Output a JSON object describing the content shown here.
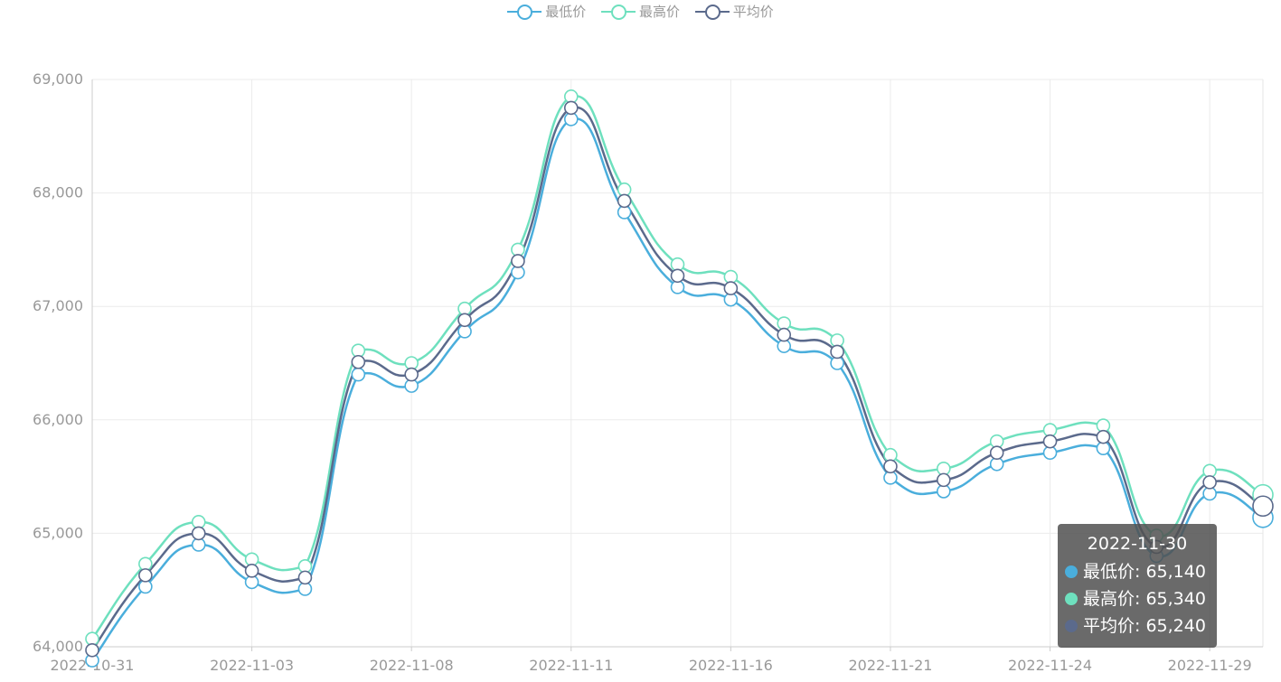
{
  "legend": {
    "items": [
      {
        "label": "最低价",
        "color": "#4aaedc"
      },
      {
        "label": "最高价",
        "color": "#6ee0be"
      },
      {
        "label": "平均价",
        "color": "#5b6a8c"
      }
    ]
  },
  "tooltip": {
    "title": "2022-11-30",
    "rows": [
      {
        "label": "最低价: 65,140",
        "color": "#4aaedc"
      },
      {
        "label": "最高价: 65,340",
        "color": "#6ee0be"
      },
      {
        "label": "平均价: 65,240",
        "color": "#5b6a8c"
      }
    ]
  },
  "chart_data": {
    "type": "line",
    "smooth": true,
    "x": [
      "2022-10-31",
      "2022-11-01",
      "2022-11-02",
      "2022-11-03",
      "2022-11-04",
      "2022-11-07",
      "2022-11-08",
      "2022-11-09",
      "2022-11-10",
      "2022-11-11",
      "2022-11-14",
      "2022-11-15",
      "2022-11-16",
      "2022-11-17",
      "2022-11-18",
      "2022-11-21",
      "2022-11-22",
      "2022-11-23",
      "2022-11-24",
      "2022-11-25",
      "2022-11-28",
      "2022-11-29",
      "2022-11-30"
    ],
    "x_tick_labels": [
      "2022-10-31",
      "2022-11-03",
      "2022-11-08",
      "2022-11-11",
      "2022-11-16",
      "2022-11-21",
      "2022-11-24",
      "2022-11-29"
    ],
    "x_tick_indices": [
      0,
      3,
      6,
      9,
      12,
      15,
      18,
      21
    ],
    "y_ticks": [
      "64,000",
      "65,000",
      "66,000",
      "67,000",
      "68,000",
      "69,000"
    ],
    "ylim": [
      64000,
      69000
    ],
    "grid": true,
    "legend_position": "top-center",
    "series": [
      {
        "name": "最低价",
        "color": "#4aaedc",
        "values": [
          63880,
          64530,
          64900,
          64570,
          64510,
          66400,
          66300,
          66780,
          67300,
          68650,
          67830,
          67170,
          67060,
          66650,
          66500,
          65490,
          65370,
          65610,
          65710,
          65750,
          64800,
          65350,
          65140
        ]
      },
      {
        "name": "最高价",
        "color": "#6ee0be",
        "values": [
          64070,
          64730,
          65100,
          64770,
          64710,
          66610,
          66500,
          66980,
          67500,
          68850,
          68030,
          67370,
          67260,
          66850,
          66700,
          65690,
          65570,
          65810,
          65910,
          65950,
          64980,
          65550,
          65340
        ]
      },
      {
        "name": "平均价",
        "color": "#5b6a8c",
        "values": [
          63970,
          64630,
          65000,
          64670,
          64610,
          66510,
          66400,
          66880,
          67400,
          68750,
          67930,
          67270,
          67160,
          66750,
          66600,
          65590,
          65470,
          65710,
          65810,
          65850,
          64880,
          65450,
          65240
        ]
      }
    ]
  }
}
